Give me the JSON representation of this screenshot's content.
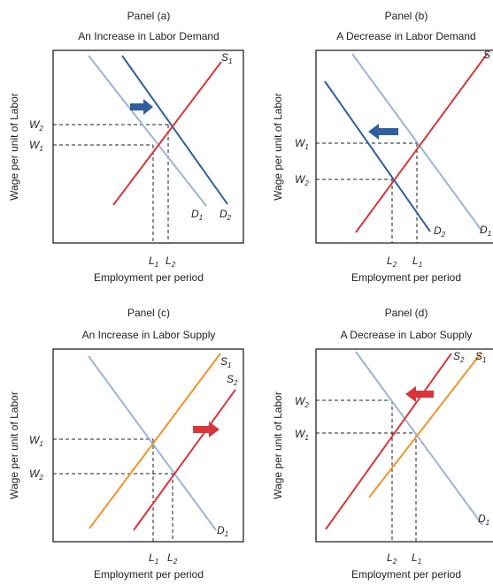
{
  "colors": {
    "demand_light": "#9bb4d9",
    "demand_dark": "#2f5f9e",
    "supply_red": "#d8363a",
    "supply_orange": "#f0932b",
    "arrow_blue": "#2f5f9e",
    "arrow_red": "#d8363a",
    "axis": "#222222",
    "dash": "#222222"
  },
  "panels": [
    {
      "name": "Panel (a)",
      "title": "An Increase in Labor Demand",
      "ylabel": "Wage per unit of Labor",
      "xlabel": "Employment per period",
      "shift": "demand-increase",
      "arrow_direction": "right",
      "arrow_color": "blue",
      "curves": [
        {
          "role": "supply",
          "label": "S",
          "sub": "1",
          "color": "red"
        },
        {
          "role": "demand-original",
          "label": "D",
          "sub": "1",
          "color": "light-blue"
        },
        {
          "role": "demand-new",
          "label": "D",
          "sub": "2",
          "color": "dark-blue"
        }
      ],
      "wage_ticks": [
        {
          "label": "W",
          "sub": "2"
        },
        {
          "label": "W",
          "sub": "1"
        }
      ],
      "emp_ticks": [
        {
          "label": "L",
          "sub": "1"
        },
        {
          "label": "L",
          "sub": "2"
        }
      ]
    },
    {
      "name": "Panel (b)",
      "title": "A Decrease in Labor Demand",
      "ylabel": "Wage per unit of Labor",
      "xlabel": "Employment per period",
      "shift": "demand-decrease",
      "arrow_direction": "left",
      "arrow_color": "blue",
      "curves": [
        {
          "role": "supply",
          "label": "S",
          "sub": "",
          "color": "red"
        },
        {
          "role": "demand-original",
          "label": "D",
          "sub": "1",
          "color": "light-blue"
        },
        {
          "role": "demand-new",
          "label": "D",
          "sub": "2",
          "color": "dark-blue"
        }
      ],
      "wage_ticks": [
        {
          "label": "W",
          "sub": "1"
        },
        {
          "label": "W",
          "sub": "2"
        }
      ],
      "emp_ticks": [
        {
          "label": "L",
          "sub": "2"
        },
        {
          "label": "L",
          "sub": "1"
        }
      ]
    },
    {
      "name": "Panel (c)",
      "title": "An Increase in Labor Supply",
      "ylabel": "Wage per unit of Labor",
      "xlabel": "Employment per period",
      "shift": "supply-increase",
      "arrow_direction": "right",
      "arrow_color": "red",
      "curves": [
        {
          "role": "demand",
          "label": "D",
          "sub": "1",
          "color": "light-blue"
        },
        {
          "role": "supply-original",
          "label": "S",
          "sub": "1",
          "color": "orange"
        },
        {
          "role": "supply-new",
          "label": "S",
          "sub": "2",
          "color": "red"
        }
      ],
      "wage_ticks": [
        {
          "label": "W",
          "sub": "1"
        },
        {
          "label": "W",
          "sub": "2"
        }
      ],
      "emp_ticks": [
        {
          "label": "L",
          "sub": "1"
        },
        {
          "label": "L",
          "sub": "2"
        }
      ]
    },
    {
      "name": "Panel (d)",
      "title": "A Decrease in Labor Supply",
      "ylabel": "Wage per unit of Labor",
      "xlabel": "Employment per period",
      "shift": "supply-decrease",
      "arrow_direction": "left",
      "arrow_color": "red",
      "curves": [
        {
          "role": "demand",
          "label": "D",
          "sub": "1",
          "color": "light-blue"
        },
        {
          "role": "supply-original",
          "label": "S",
          "sub": "1",
          "color": "orange"
        },
        {
          "role": "supply-new",
          "label": "S",
          "sub": "2",
          "color": "red"
        }
      ],
      "wage_ticks": [
        {
          "label": "W",
          "sub": "2"
        },
        {
          "label": "W",
          "sub": "1"
        }
      ],
      "emp_ticks": [
        {
          "label": "L",
          "sub": "2"
        },
        {
          "label": "L",
          "sub": "1"
        }
      ]
    }
  ]
}
